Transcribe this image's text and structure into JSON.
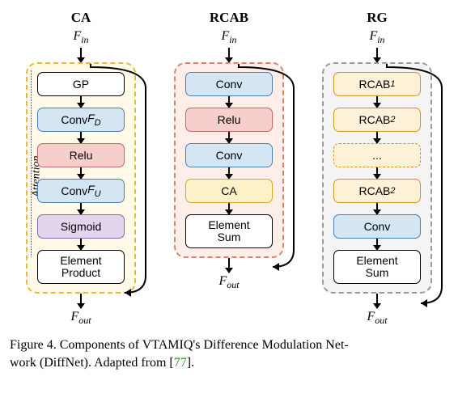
{
  "figure": {
    "caption_prefix": "Figure 4. Components of VTAMIQ's Difference Modulation Net-",
    "caption_line2_a": "work (DiffNet). Adapted from [",
    "ref_num": "77",
    "caption_line2_b": "].",
    "fin_html": "F<sub>in</sub>",
    "fout_html": "F<sub>out</sub>",
    "columns": {
      "ca": {
        "title": "CA",
        "panel_bg": "#fffbe8",
        "panel_border": "#e8b93a",
        "side_label": "Attention",
        "blocks": [
          {
            "label": "GP",
            "bg": "#ffffff",
            "border": "#000000"
          },
          {
            "label": "Conv F_D",
            "bg": "#d4e5f4",
            "border": "#4b7fb3"
          },
          {
            "label": "Relu",
            "bg": "#f6cfcd",
            "border": "#c96763"
          },
          {
            "label": "Conv F_U",
            "bg": "#d4e5f4",
            "border": "#4b7fb3"
          },
          {
            "label": "Sigmoid",
            "bg": "#e4d5ee",
            "border": "#8b6aa9"
          },
          {
            "label": "Element\nProduct",
            "bg": "#ffffff",
            "border": "#000000",
            "tall": true
          }
        ]
      },
      "rcab": {
        "title": "RCAB",
        "panel_bg": "#fdeeea",
        "panel_border": "#d9856e",
        "blocks": [
          {
            "label": "Conv",
            "bg": "#d4e5f4",
            "border": "#4b7fb3"
          },
          {
            "label": "Relu",
            "bg": "#f6cfcd",
            "border": "#c96763"
          },
          {
            "label": "Conv",
            "bg": "#d4e5f4",
            "border": "#4b7fb3"
          },
          {
            "label": "CA",
            "bg": "#fdf1c8",
            "border": "#d6a726"
          },
          {
            "label": "Element\nSum",
            "bg": "#ffffff",
            "border": "#000000",
            "tall": true
          }
        ]
      },
      "rg": {
        "title": "RG",
        "panel_bg": "#f4f4f4",
        "panel_border": "#9a9a9a",
        "blocks": [
          {
            "label": "RCAB_1",
            "bg": "#fdf2d8",
            "border": "#d59420"
          },
          {
            "label": "RCAB_2",
            "bg": "#fdf2d8",
            "border": "#d59420"
          },
          {
            "label": "...",
            "bg": "#fdf2d8",
            "border": "#d59420",
            "dashed": true
          },
          {
            "label": "RCAB_2",
            "bg": "#fdf2d8",
            "border": "#d59420"
          },
          {
            "label": "Conv",
            "bg": "#d4e5f4",
            "border": "#4b7fb3"
          },
          {
            "label": "Element\nSum",
            "bg": "#ffffff",
            "border": "#000000",
            "tall": true
          }
        ]
      }
    }
  }
}
